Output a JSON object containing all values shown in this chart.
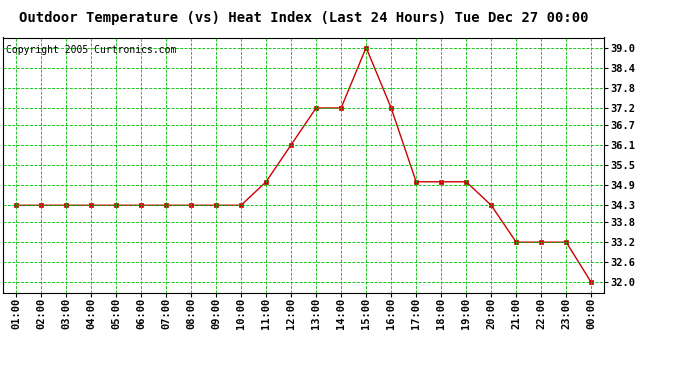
{
  "title": "Outdoor Temperature (vs) Heat Index (Last 24 Hours) Tue Dec 27 00:00",
  "copyright": "Copyright 2005 Curtronics.com",
  "x_labels": [
    "01:00",
    "02:00",
    "03:00",
    "04:00",
    "05:00",
    "06:00",
    "07:00",
    "08:00",
    "09:00",
    "10:00",
    "11:00",
    "12:00",
    "13:00",
    "14:00",
    "15:00",
    "16:00",
    "17:00",
    "18:00",
    "19:00",
    "20:00",
    "21:00",
    "22:00",
    "23:00",
    "00:00"
  ],
  "y_values": [
    34.3,
    34.3,
    34.3,
    34.3,
    34.3,
    34.3,
    34.3,
    34.3,
    34.3,
    34.3,
    35.0,
    36.1,
    37.2,
    37.2,
    39.0,
    37.2,
    35.0,
    35.0,
    35.0,
    34.3,
    33.2,
    33.2,
    33.2,
    32.0
  ],
  "ylim_min": 31.7,
  "ylim_max": 39.3,
  "yticks": [
    32.0,
    32.6,
    33.2,
    33.8,
    34.3,
    34.9,
    35.5,
    36.1,
    36.7,
    37.2,
    37.8,
    38.4,
    39.0
  ],
  "line_color": "#cc0000",
  "marker_color": "#cc0000",
  "bg_color": "#ffffff",
  "plot_bg_color": "#ffffff",
  "grid_color": "#00bb00",
  "title_fontsize": 10,
  "copyright_fontsize": 7,
  "tick_fontsize": 7.5
}
